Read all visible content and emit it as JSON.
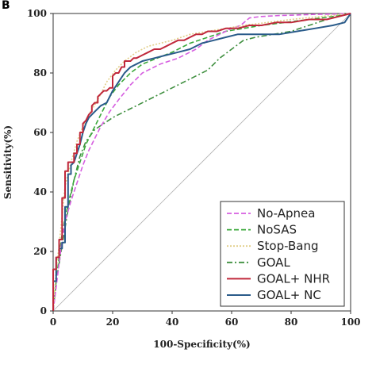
{
  "panel_letter": "B",
  "chart_data": {
    "type": "line",
    "title": "",
    "xlabel": "100-Specificity(%)",
    "ylabel": "Sensitivity(%)",
    "xlim": [
      0,
      100
    ],
    "ylim": [
      0,
      100
    ],
    "x_ticks": [
      0,
      20,
      40,
      60,
      80,
      100
    ],
    "y_ticks": [
      0,
      20,
      40,
      60,
      80,
      100
    ],
    "grid": false,
    "legend_position": "bottom-right",
    "reference_line": {
      "x": [
        0,
        100
      ],
      "y": [
        0,
        100
      ],
      "color": "#b0b0b0"
    },
    "series": [
      {
        "name": "No-Apnea",
        "color": "#d65fe0",
        "dash": "dashed",
        "x": [
          0,
          1,
          2,
          3,
          4,
          6,
          8,
          10,
          12,
          14,
          16,
          19,
          22,
          26,
          30,
          36,
          42,
          48,
          52,
          56,
          60,
          63,
          66,
          70,
          76,
          82,
          88,
          94,
          100
        ],
        "y": [
          0,
          8,
          16,
          24,
          30,
          37,
          43,
          49,
          54,
          58,
          62,
          67,
          71,
          76,
          80,
          83,
          85,
          88,
          91,
          93,
          95,
          96,
          98.5,
          99,
          99.3,
          99.5,
          99.7,
          99.8,
          100
        ]
      },
      {
        "name": "NoSAS",
        "color": "#3aa83a",
        "dash": "dashed",
        "x": [
          0,
          1,
          2,
          3,
          5,
          7,
          9,
          11,
          13,
          16,
          19,
          22,
          26,
          30,
          35,
          40,
          46,
          52,
          58,
          64,
          70,
          78,
          86,
          94,
          100
        ],
        "y": [
          0,
          10,
          18,
          26,
          36,
          44,
          50,
          56,
          60,
          66,
          72,
          76,
          80,
          83,
          85,
          87,
          90,
          92,
          94,
          95,
          96,
          97,
          98,
          99,
          100
        ]
      },
      {
        "name": "Stop-Bang",
        "color": "#e2cf8a",
        "dash": "dotted",
        "x": [
          0,
          1,
          2,
          3,
          4,
          6,
          8,
          10,
          12,
          15,
          18,
          21,
          24,
          28,
          32,
          36,
          40,
          46,
          52,
          58,
          64,
          72,
          80,
          90,
          100
        ],
        "y": [
          0,
          14,
          22,
          32,
          42,
          50,
          57,
          62,
          66,
          71,
          77,
          81,
          84,
          87,
          89,
          90,
          91,
          93,
          94,
          95,
          96,
          97,
          98,
          99,
          100
        ]
      },
      {
        "name": "GOAL",
        "color": "#3f8f3f",
        "dash": "dashdot",
        "x": [
          0,
          1,
          3,
          5,
          7,
          9,
          11,
          14,
          17,
          20,
          24,
          28,
          32,
          36,
          40,
          44,
          48,
          52,
          56,
          60,
          64,
          68,
          74,
          80,
          86,
          92,
          100
        ],
        "y": [
          0,
          10,
          22,
          34,
          44,
          52,
          57,
          61,
          63,
          65,
          67,
          69,
          71,
          73,
          75,
          77,
          79,
          81,
          85,
          88,
          91,
          92,
          93,
          94,
          96,
          98,
          100
        ]
      },
      {
        "name": "GOAL+ NHR",
        "color": "#c0283b",
        "dash": "solid",
        "x": [
          0,
          0,
          1,
          1,
          2,
          2,
          3,
          3,
          4,
          4,
          5,
          5,
          6,
          6,
          7,
          7,
          8,
          8,
          9,
          9,
          10,
          10,
          11,
          12,
          13,
          13,
          14,
          15,
          15,
          16,
          17,
          18,
          19,
          20,
          20,
          21,
          22,
          23,
          24,
          24,
          26,
          27,
          28,
          30,
          32,
          34,
          36,
          38,
          40,
          42,
          44,
          46,
          48,
          50,
          52,
          55,
          58,
          62,
          66,
          70,
          75,
          80,
          86,
          92,
          96,
          100
        ],
        "y": [
          0,
          14,
          14,
          18,
          18,
          24,
          24,
          38,
          38,
          47,
          47,
          50,
          50,
          50,
          50,
          53,
          53,
          56,
          56,
          60,
          60,
          63,
          64,
          66,
          67,
          69,
          70,
          70,
          72,
          73,
          74,
          74,
          75,
          75,
          79,
          80,
          80,
          82,
          82,
          84,
          84,
          85,
          85,
          86,
          87,
          88,
          88,
          89,
          90,
          91,
          91,
          92,
          93,
          93,
          94,
          94,
          95,
          95,
          96,
          96,
          97,
          97,
          98,
          98,
          99,
          100
        ]
      },
      {
        "name": "GOAL+ NC",
        "color": "#2a5b8a",
        "dash": "solid",
        "x": [
          0,
          0,
          1,
          1,
          2,
          2,
          3,
          3,
          4,
          4,
          5,
          5,
          6,
          6,
          7,
          8,
          9,
          10,
          11,
          12,
          14,
          16,
          18,
          20,
          22,
          24,
          26,
          28,
          30,
          34,
          38,
          42,
          46,
          50,
          54,
          58,
          62,
          66,
          70,
          76,
          82,
          88,
          94,
          98,
          100
        ],
        "y": [
          0,
          10,
          10,
          18,
          18,
          21,
          21,
          23,
          23,
          35,
          35,
          46,
          46,
          49,
          50,
          53,
          56,
          60,
          63,
          65,
          67,
          69,
          70,
          74,
          77,
          80,
          82,
          83,
          84,
          85,
          86,
          87,
          88,
          90,
          91,
          92,
          93,
          93,
          93,
          93,
          94,
          95,
          96,
          97,
          100
        ]
      }
    ]
  }
}
